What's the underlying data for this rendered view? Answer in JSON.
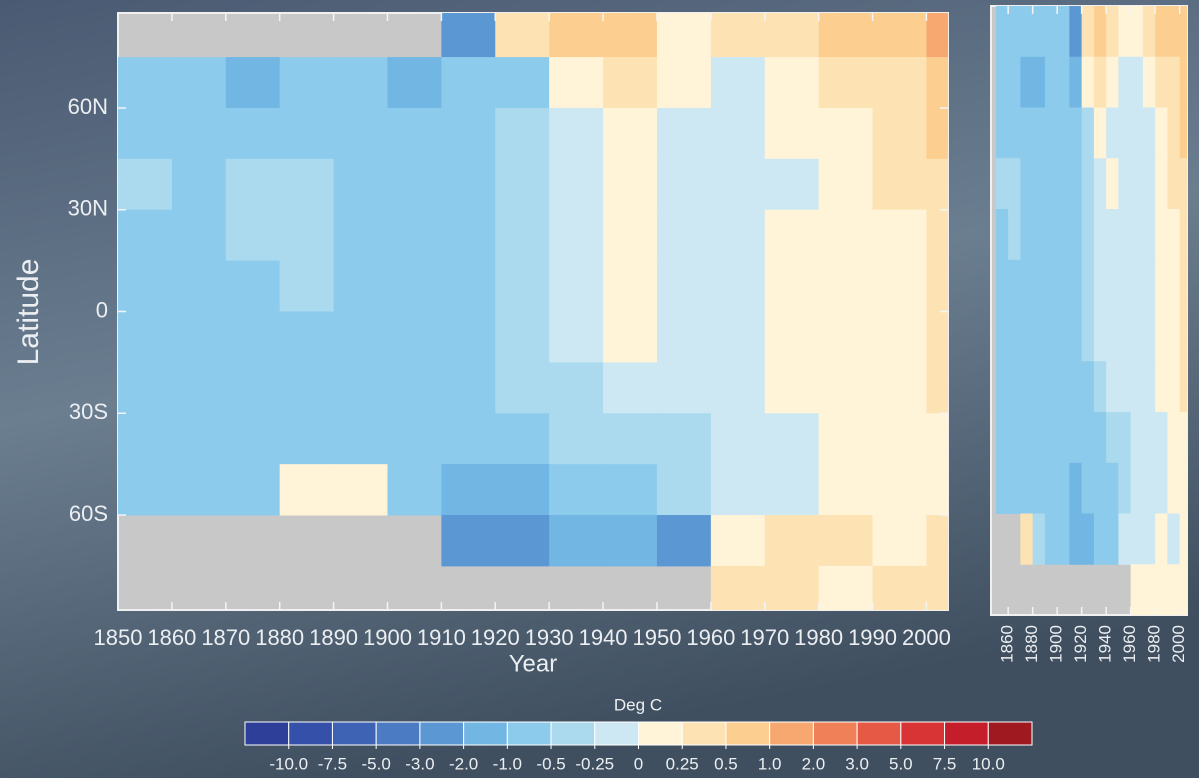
{
  "chart_data": [
    {
      "type": "heatmap",
      "xlabel": "Year",
      "ylabel": "Latitude",
      "x": [
        1850,
        1860,
        1870,
        1880,
        1890,
        1900,
        1910,
        1920,
        1930,
        1940,
        1950,
        1960,
        1970,
        1980,
        1990,
        2000
      ],
      "y": [
        82.5,
        67.5,
        52.5,
        37.5,
        22.5,
        7.5,
        -7.5,
        -22.5,
        -37.5,
        -52.5,
        -67.5,
        -82.5
      ],
      "z": [
        [
          null,
          null,
          null,
          null,
          null,
          null,
          -2,
          0.5,
          1,
          1,
          0.25,
          0.5,
          0.5,
          1,
          1,
          1.5
        ],
        [
          -0.5,
          -0.5,
          -1,
          -0.5,
          -0.5,
          -1,
          -0.5,
          -0.5,
          0.25,
          0.5,
          0.25,
          0,
          0.25,
          0.5,
          0.5,
          1
        ],
        [
          -0.5,
          -0.5,
          -0.5,
          -0.5,
          -0.5,
          -0.5,
          -0.5,
          -0.25,
          0,
          0.25,
          0,
          0,
          0.25,
          0.25,
          0.5,
          1
        ],
        [
          -0.25,
          -0.5,
          -0.25,
          -0.25,
          -0.5,
          -0.5,
          -0.5,
          -0.25,
          0,
          0.25,
          0,
          -0.1,
          0,
          0.25,
          0.5,
          0.5
        ],
        [
          -0.5,
          -0.5,
          -0.25,
          -0.25,
          -0.5,
          -0.5,
          -0.5,
          -0.25,
          -0.1,
          0.1,
          0,
          -0.1,
          0.1,
          0.25,
          0.25,
          0.5
        ],
        [
          -0.5,
          -0.5,
          -0.5,
          -0.25,
          -0.5,
          -0.5,
          -0.5,
          -0.25,
          -0.1,
          0.1,
          0,
          0,
          0.1,
          0.25,
          0.25,
          0.5
        ],
        [
          -0.5,
          -0.5,
          -0.5,
          -0.5,
          -0.5,
          -0.5,
          -0.5,
          -0.25,
          -0.1,
          0.1,
          -0.1,
          0,
          0.1,
          0.25,
          0.25,
          0.5
        ],
        [
          -0.5,
          -0.5,
          -0.5,
          -0.5,
          -0.5,
          -0.5,
          -0.5,
          -0.25,
          -0.25,
          0,
          -0.1,
          0,
          0.1,
          0.1,
          0.25,
          0.5
        ],
        [
          -0.5,
          -0.5,
          -0.5,
          -0.5,
          -0.5,
          -0.5,
          -0.5,
          -0.5,
          -0.25,
          -0.25,
          -0.25,
          -0.1,
          0,
          0.1,
          0.25,
          0.25
        ],
        [
          -0.5,
          -0.5,
          -0.5,
          0.25,
          0.25,
          -0.5,
          -1,
          -1,
          -0.5,
          -0.5,
          -0.25,
          -0.1,
          0,
          0.1,
          0.1,
          0.25
        ],
        [
          null,
          null,
          null,
          null,
          null,
          null,
          -2,
          -2,
          -1,
          -1,
          -2,
          0.25,
          0.5,
          0.5,
          0.25,
          0.5
        ],
        [
          null,
          null,
          null,
          null,
          null,
          null,
          null,
          null,
          null,
          null,
          null,
          0.5,
          0.5,
          0.25,
          0.5,
          0.5
        ]
      ],
      "xlim": [
        1850,
        2004
      ],
      "ylim": [
        -88,
        88
      ],
      "xticks": [
        1850,
        1860,
        1870,
        1880,
        1890,
        1900,
        1910,
        1920,
        1930,
        1940,
        1950,
        1960,
        1970,
        1980,
        1990,
        2000
      ],
      "yticks": [
        {
          "value": 60,
          "label": "60N"
        },
        {
          "value": 30,
          "label": "30N"
        },
        0,
        {
          "value": -30,
          "label": "30S"
        },
        {
          "value": -60,
          "label": "60S"
        }
      ],
      "colorbar": {
        "title": "Deg C",
        "colors": [
          "#2e3f99",
          "#3550a8",
          "#3e63b5",
          "#4b7bc3",
          "#5b98d3",
          "#72b6e4",
          "#8dcbec",
          "#abdaef",
          "#cde8f3",
          "#fff3d8",
          "#fde3b4",
          "#fccf90",
          "#f6a870",
          "#ef8058",
          "#e65a45",
          "#d93435",
          "#c41e2a",
          "#9e1a20"
        ],
        "ticks": [
          {
            "value": -10,
            "label": "-10.0"
          },
          -7.5,
          {
            "value": -5,
            "label": "-5.0"
          },
          {
            "value": -3,
            "label": "-3.0"
          },
          {
            "value": -2,
            "label": "-2.0"
          },
          {
            "value": -1,
            "label": "-1.0"
          },
          -0.5,
          -0.25,
          0,
          0.25,
          0.5,
          {
            "value": 1,
            "label": "1.0"
          },
          {
            "value": 2,
            "label": "2.0"
          },
          {
            "value": 3,
            "label": "3.0"
          },
          {
            "value": 5,
            "label": "5.0"
          },
          7.5,
          {
            "value": 10,
            "label": "10.0"
          }
        ]
      }
    },
    {
      "type": "heatmap",
      "x": [
        1850,
        1860,
        1870,
        1880,
        1890,
        1900,
        1910,
        1920,
        1930,
        1940,
        1950,
        1960,
        1970,
        1980,
        1990,
        2000
      ],
      "y": [
        82.5,
        67.5,
        52.5,
        37.5,
        22.5,
        7.5,
        -7.5,
        -22.5,
        -37.5,
        -52.5,
        -67.5,
        -82.5
      ],
      "z": [
        [
          -0.5,
          -0.5,
          -0.5,
          -0.5,
          -0.5,
          -0.5,
          -2,
          0.5,
          1,
          0.5,
          0.25,
          0.25,
          0.5,
          1,
          1,
          1
        ],
        [
          -0.5,
          -0.5,
          -1,
          -1,
          -0.5,
          -0.5,
          -1,
          0.25,
          0.5,
          0.25,
          0,
          0,
          0.25,
          0.5,
          0.5,
          1
        ],
        [
          -0.5,
          -0.5,
          -0.5,
          -0.5,
          -0.5,
          -0.5,
          -0.5,
          -0.25,
          0.25,
          0,
          0,
          0,
          0,
          0.25,
          0.5,
          1
        ],
        [
          -0.25,
          -0.25,
          -0.5,
          -0.5,
          -0.5,
          -0.5,
          -0.5,
          -0.25,
          0,
          0.25,
          0,
          0,
          0,
          0.25,
          0.5,
          0.5
        ],
        [
          -0.5,
          -0.25,
          -0.5,
          -0.5,
          -0.5,
          -0.5,
          -0.5,
          -0.25,
          -0.1,
          0,
          0,
          0,
          0,
          0.25,
          0.25,
          0.5
        ],
        [
          -0.5,
          -0.5,
          -0.5,
          -0.5,
          -0.5,
          -0.5,
          -0.5,
          -0.25,
          -0.1,
          0,
          0,
          -0.1,
          0,
          0.1,
          0.25,
          0.5
        ],
        [
          -0.5,
          -0.5,
          -0.5,
          -0.5,
          -0.5,
          -0.5,
          -0.5,
          -0.25,
          -0.1,
          0,
          -0.1,
          0,
          0,
          0.1,
          0.25,
          0.5
        ],
        [
          -0.5,
          -0.5,
          -0.5,
          -0.5,
          -0.5,
          -0.5,
          -0.5,
          -0.5,
          -0.25,
          -0.1,
          -0.1,
          -0.1,
          0,
          0.1,
          0.25,
          0.5
        ],
        [
          -0.5,
          -0.5,
          -0.5,
          -0.5,
          -0.5,
          -0.5,
          -0.5,
          -0.5,
          -0.5,
          -0.25,
          -0.25,
          -0.1,
          0,
          0,
          0.1,
          0.25
        ],
        [
          -0.5,
          -0.5,
          -0.5,
          -0.5,
          -0.5,
          -0.5,
          -1,
          -0.5,
          -0.5,
          -0.5,
          -0.25,
          -0.1,
          0,
          0,
          0.1,
          0.25
        ],
        [
          null,
          null,
          0.5,
          -0.25,
          -0.5,
          -0.5,
          -1,
          -1,
          -0.5,
          -0.5,
          -0.1,
          0,
          0,
          0.1,
          0,
          0.25
        ],
        [
          null,
          null,
          null,
          null,
          null,
          null,
          null,
          null,
          null,
          null,
          null,
          0.1,
          0.25,
          0.1,
          0.1,
          0.25
        ]
      ],
      "xlim": [
        1846,
        2006
      ],
      "ylim": [
        -90,
        90
      ],
      "xticks": [
        1860,
        1880,
        1900,
        1920,
        1940,
        1960,
        1980,
        2000
      ]
    }
  ]
}
